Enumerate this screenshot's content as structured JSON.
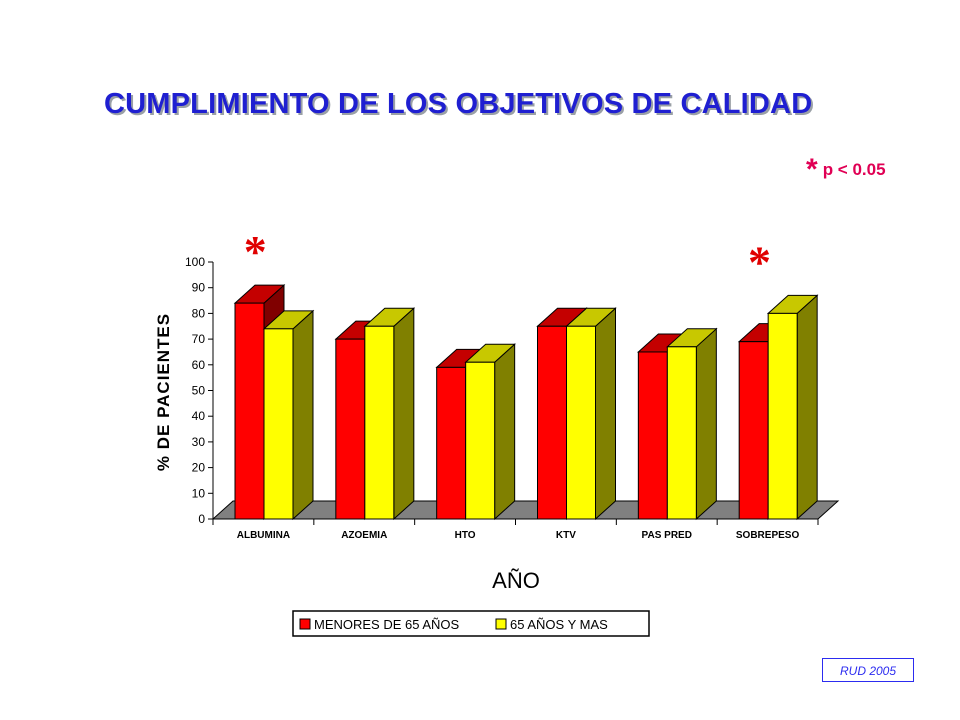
{
  "slide": {
    "title": "CUMPLIMIENTO DE LOS OBJETIVOS DE CALIDAD",
    "significance_star": "*",
    "significance_text": "p < 0.05",
    "source": "RUD 2005"
  },
  "chart_data": {
    "type": "bar",
    "style": "3d-clustered",
    "categories": [
      "ALBUMINA",
      "AZOEMIA",
      "HTO",
      "KTV",
      "PAS PRED",
      "SOBREPESO"
    ],
    "series": [
      {
        "name": "MENORES DE 65 AÑOS",
        "values": [
          84,
          70,
          59,
          75,
          65,
          69
        ],
        "color": "#ff0000",
        "top_color": "#c40000",
        "side_color": "#800000"
      },
      {
        "name": "65 AÑOS Y MAS",
        "values": [
          74,
          75,
          61,
          75,
          67,
          80
        ],
        "color": "#ffff00",
        "top_color": "#c8c800",
        "side_color": "#808000"
      }
    ],
    "xlabel": "AÑO",
    "ylabel": "% DE PACIENTES",
    "ylim": [
      0,
      100
    ],
    "yticks": [
      0,
      10,
      20,
      30,
      40,
      50,
      60,
      70,
      80,
      90,
      100
    ],
    "significant_categories": [
      "ALBUMINA",
      "SOBREPESO"
    ],
    "significance_marker": "*",
    "floor_color": "#808080",
    "legend_position": "bottom"
  }
}
